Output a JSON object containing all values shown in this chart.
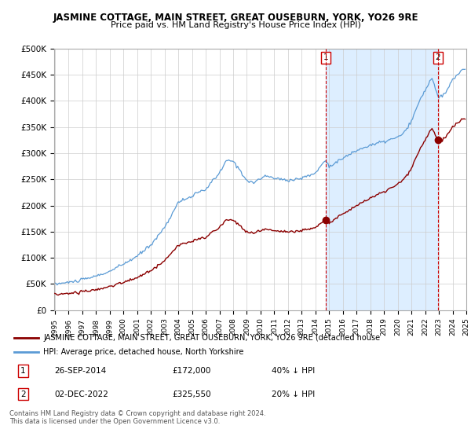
{
  "title": "JASMINE COTTAGE, MAIN STREET, GREAT OUSEBURN, YORK, YO26 9RE",
  "subtitle": "Price paid vs. HM Land Registry's House Price Index (HPI)",
  "hpi_color": "#5b9bd5",
  "price_color": "#8b0000",
  "marker_color": "#8b0000",
  "vline_color": "#cc0000",
  "shade_color": "#ddeeff",
  "background_color": "#ffffff",
  "grid_color": "#cccccc",
  "ylim": [
    0,
    500000
  ],
  "yticks": [
    0,
    50000,
    100000,
    150000,
    200000,
    250000,
    300000,
    350000,
    400000,
    450000,
    500000
  ],
  "ytick_labels": [
    "£0",
    "£50K",
    "£100K",
    "£150K",
    "£200K",
    "£250K",
    "£300K",
    "£350K",
    "£400K",
    "£450K",
    "£500K"
  ],
  "sale1_date": 2014.74,
  "sale1_price": 172000,
  "sale2_date": 2022.92,
  "sale2_price": 325550,
  "legend_line1": "JASMINE COTTAGE, MAIN STREET, GREAT OUSEBURN, YORK, YO26 9RE (detached house",
  "legend_line2": "HPI: Average price, detached house, North Yorkshire",
  "table_row1": [
    "1",
    "26-SEP-2014",
    "£172,000",
    "40% ↓ HPI"
  ],
  "table_row2": [
    "2",
    "02-DEC-2022",
    "£325,550",
    "20% ↓ HPI"
  ],
  "footnote": "Contains HM Land Registry data © Crown copyright and database right 2024.\nThis data is licensed under the Open Government Licence v3.0."
}
